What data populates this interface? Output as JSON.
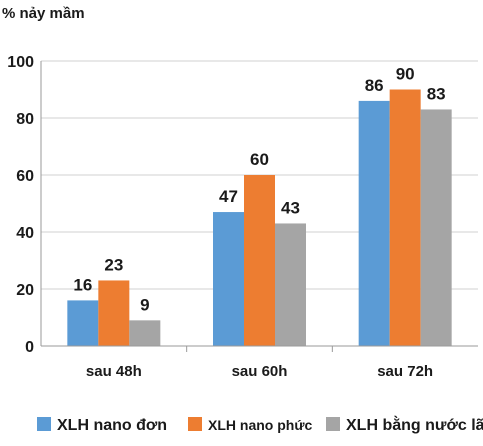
{
  "chart_data": {
    "type": "bar",
    "ylabel": "% nảy mầm",
    "ylim": [
      0,
      100
    ],
    "yticks": [
      0,
      20,
      40,
      60,
      80,
      100
    ],
    "grid": true,
    "legend_position": "bottom",
    "categories": [
      "sau 48h",
      "sau 60h",
      "sau 72h"
    ],
    "series": [
      {
        "name": "XLH nano đơn",
        "color": "#5b9bd5",
        "values": [
          16,
          47,
          86
        ]
      },
      {
        "name": "XLH nano phức",
        "color": "#ed7d31",
        "values": [
          23,
          60,
          90
        ]
      },
      {
        "name": "XLH bằng nước lã",
        "color": "#a5a5a5",
        "values": [
          9,
          43,
          83
        ]
      }
    ]
  }
}
